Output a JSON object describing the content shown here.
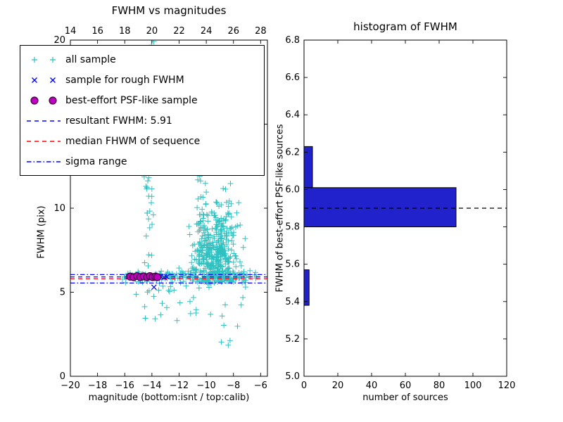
{
  "chart_data": [
    {
      "id": "fwhm_vs_magnitudes",
      "type": "scatter",
      "title": "FWHM vs magnitudes",
      "xlabel": "magnitude (bottom:isnt / top:calib)",
      "ylabel": "FWHM (pix)",
      "xlim": [
        -20,
        -5.5
      ],
      "ylim": [
        0,
        20
      ],
      "xticks": [
        -20,
        -18,
        -16,
        -14,
        -12,
        -10,
        -8,
        -6
      ],
      "yticks": [
        0,
        5,
        10,
        15,
        20
      ],
      "top_axis_ticks": [
        14,
        16,
        18,
        20,
        22,
        24,
        26,
        28
      ],
      "top_axis_offset": 34,
      "grid": false,
      "legend_position": "upper left",
      "hlines": [
        {
          "name": "resultant-fwhm-line",
          "y": 5.91,
          "color": "#0000ff",
          "style": "dashed"
        },
        {
          "name": "median-fwhm-line",
          "y": 5.8,
          "color": "#ff0000",
          "style": "dashed"
        },
        {
          "name": "sigma-upper-line",
          "y": 6.05,
          "color": "#0000ff",
          "style": "dashdot"
        },
        {
          "name": "sigma-lower-line",
          "y": 5.55,
          "color": "#0000ff",
          "style": "dashdot"
        }
      ],
      "series": [
        {
          "name": "all sample",
          "marker": "plus",
          "color": "#2fc0c0",
          "seed": 1337,
          "clusters": [
            {
              "count": 180,
              "x": {
                "dist": "uniform",
                "min": -16.2,
                "max": -7.0
              },
              "y": {
                "dist": "normal",
                "mean": 5.95,
                "sd": 0.18
              }
            },
            {
              "count": 420,
              "x": {
                "dist": "normal",
                "mean": -9.2,
                "sd": 0.8,
                "min": -11.8,
                "max": -6.6
              },
              "y": {
                "dist": "halfnormal",
                "base": 5.6,
                "scale": 2.1,
                "max": 13.8
              }
            },
            {
              "count": 45,
              "x": {
                "dist": "normal",
                "mean": -14.15,
                "sd": 0.18
              },
              "y": {
                "dist": "uniform",
                "min": 5.6,
                "max": 20
              }
            },
            {
              "count": 70,
              "x": {
                "dist": "normal",
                "mean": -10.35,
                "sd": 0.28
              },
              "y": {
                "dist": "uniform",
                "min": 6.5,
                "max": 20
              }
            },
            {
              "count": 30,
              "x": {
                "dist": "uniform",
                "min": -15.5,
                "max": -7.3
              },
              "y": {
                "dist": "uniform",
                "min": 3.3,
                "max": 5.6
              }
            },
            {
              "count": 12,
              "x": {
                "dist": "uniform",
                "min": -7.6,
                "max": -6.0
              },
              "y": {
                "dist": "uniform",
                "min": 4.0,
                "max": 6.3
              }
            },
            {
              "count": 6,
              "x": {
                "dist": "uniform",
                "min": -9.2,
                "max": -7.6
              },
              "y": {
                "dist": "uniform",
                "min": 1.8,
                "max": 3.6
              }
            }
          ]
        },
        {
          "name": "sample for rough FWHM",
          "marker": "x",
          "color": "#0000ff",
          "points": [
            [
              -15.75,
              5.92
            ],
            [
              -15.45,
              5.88
            ],
            [
              -15.15,
              5.95
            ],
            [
              -14.9,
              5.9
            ],
            [
              -14.6,
              5.93
            ],
            [
              -14.35,
              5.87
            ],
            [
              -14.1,
              5.95
            ],
            [
              -13.85,
              5.3
            ],
            [
              -13.6,
              5.9
            ],
            [
              -13.35,
              5.93
            ],
            [
              -13.1,
              5.88
            ],
            [
              -12.9,
              5.92
            ]
          ]
        },
        {
          "name": "best-effort PSF-like sample",
          "marker": "circle",
          "color": "#bf00bf",
          "edge": "#3a003a",
          "points": [
            [
              -15.6,
              5.93
            ],
            [
              -15.35,
              5.9
            ],
            [
              -15.1,
              5.96
            ],
            [
              -14.85,
              5.9
            ],
            [
              -14.6,
              5.94
            ],
            [
              -14.35,
              5.9
            ],
            [
              -14.15,
              5.96
            ],
            [
              -13.95,
              5.9
            ],
            [
              -13.75,
              5.93
            ],
            [
              -13.6,
              5.9
            ]
          ]
        }
      ],
      "legend": [
        {
          "label": "all sample",
          "kind": "marker",
          "marker": "plus",
          "color": "#2fc0c0"
        },
        {
          "label": "sample for rough FWHM",
          "kind": "marker",
          "marker": "x",
          "color": "#0000ff"
        },
        {
          "label": "best-effort PSF-like sample",
          "kind": "marker",
          "marker": "circle",
          "color": "#bf00bf",
          "edge": "#3a003a"
        },
        {
          "label": "resultant FWHM: 5.91",
          "kind": "line",
          "style": "dashed",
          "color": "#0000ff"
        },
        {
          "label": "median FHWM of sequence",
          "kind": "line",
          "style": "dashed",
          "color": "#ff0000"
        },
        {
          "label": "sigma range",
          "kind": "line",
          "style": "dashdot",
          "color": "#0000ff"
        }
      ]
    },
    {
      "id": "histogram_of_fwhm",
      "type": "barh",
      "title": "histogram of FWHM",
      "xlabel": "number of sources",
      "ylabel": "FWHM of best-effort PSF-like sources",
      "xlim": [
        0,
        120
      ],
      "ylim": [
        5.0,
        6.8
      ],
      "xticks": [
        0,
        20,
        40,
        60,
        80,
        100,
        120
      ],
      "yticks": [
        5.0,
        5.2,
        5.4,
        5.6,
        5.8,
        6.0,
        6.2,
        6.4,
        6.6,
        6.8
      ],
      "grid": false,
      "bar_color": "#2222cc",
      "bar_edge": "#000000",
      "bars": [
        {
          "from": 5.38,
          "to": 5.57,
          "value": 3
        },
        {
          "from": 5.8,
          "to": 6.01,
          "value": 90
        },
        {
          "from": 6.01,
          "to": 6.23,
          "value": 5
        }
      ],
      "hline": {
        "name": "median-line",
        "y": 5.9,
        "color": "#000000",
        "style": "dashed"
      }
    }
  ]
}
